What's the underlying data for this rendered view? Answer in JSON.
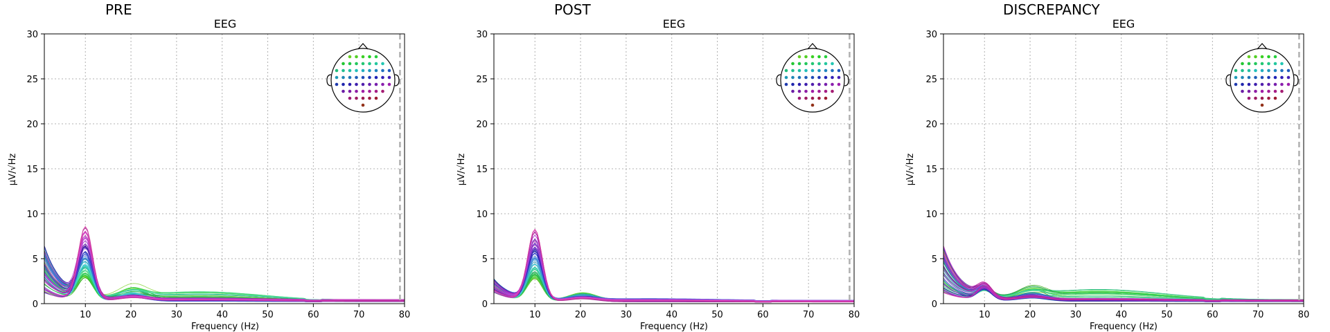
{
  "chart_data": [
    {
      "type": "line",
      "panel_title": "PRE",
      "title": "EEG",
      "xlabel": "Frequency (Hz)",
      "ylabel": "µV/√Hz",
      "xlim": [
        1,
        80
      ],
      "ylim": [
        0,
        30
      ],
      "xticks": [
        "10",
        "20",
        "30",
        "40",
        "50",
        "60",
        "70",
        "80"
      ],
      "yticks": [
        "0",
        "5",
        "10",
        "15",
        "20",
        "25",
        "30"
      ],
      "grid": true,
      "line_freq_marker_hz": 79,
      "n_channels": 60,
      "peak_freq_hz": 10,
      "series_summary": {
        "alpha_peak_max": 8.3,
        "alpha_peak_min": 2.0,
        "beta_peak_max": 2.8,
        "low_freq_start_max": 6.5,
        "high_freq_tail": 0.3
      }
    },
    {
      "type": "line",
      "panel_title": "POST",
      "title": "EEG",
      "xlabel": "Frequency (Hz)",
      "ylabel": "µV/√Hz",
      "xlim": [
        1,
        80
      ],
      "ylim": [
        0,
        30
      ],
      "xticks": [
        "10",
        "20",
        "30",
        "40",
        "50",
        "60",
        "70",
        "80"
      ],
      "yticks": [
        "0",
        "5",
        "10",
        "15",
        "20",
        "25",
        "30"
      ],
      "grid": true,
      "line_freq_marker_hz": 79,
      "n_channels": 60,
      "peak_freq_hz": 10,
      "series_summary": {
        "alpha_peak_max": 8.3,
        "alpha_peak_min": 2.3,
        "beta_peak_max": 2.0,
        "low_freq_start_max": 3.5,
        "high_freq_tail": 0.25
      }
    },
    {
      "type": "line",
      "panel_title": "DISCREPANCY",
      "title": "EEG",
      "xlabel": "Frequency (Hz)",
      "ylabel": "µV/√Hz",
      "xlim": [
        1,
        80
      ],
      "ylim": [
        0,
        30
      ],
      "xticks": [
        "10",
        "20",
        "30",
        "40",
        "50",
        "60",
        "70",
        "80"
      ],
      "yticks": [
        "0",
        "5",
        "10",
        "15",
        "20",
        "25",
        "30"
      ],
      "grid": true,
      "line_freq_marker_hz": 79,
      "n_channels": 60,
      "peak_freq_hz": 10,
      "series_summary": {
        "alpha_peak_max": 1.5,
        "alpha_peak_min": 0.8,
        "beta_peak_max": 2.6,
        "low_freq_start_max": 6.5,
        "high_freq_tail": 0.3
      }
    }
  ],
  "colors": {
    "grid": "#b0b0b0",
    "marker_line": "#b0b0b0",
    "head_outline": "#000000"
  }
}
